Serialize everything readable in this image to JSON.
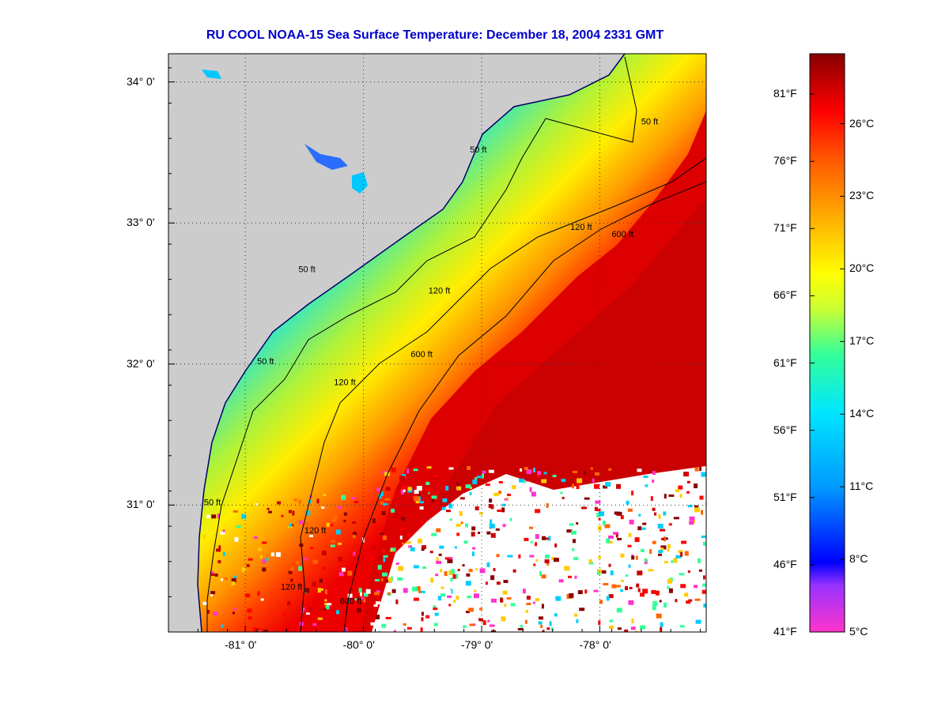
{
  "title": "RU COOL  NOAA-15  Sea Surface Temperature:  December 18, 2004 2331 GMT",
  "map": {
    "lat_ticks": [
      {
        "value": 34.0,
        "label": "34° 0'"
      },
      {
        "value": 33.0,
        "label": "33° 0'"
      },
      {
        "value": 32.0,
        "label": "32° 0'"
      },
      {
        "value": 31.0,
        "label": "31° 0'"
      }
    ],
    "lon_ticks": [
      {
        "value": -81.0,
        "label": "-81° 0'"
      },
      {
        "value": -80.0,
        "label": "-80° 0'"
      },
      {
        "value": -79.0,
        "label": "-79° 0'"
      },
      {
        "value": -78.0,
        "label": "-78° 0'"
      }
    ],
    "lat_range": [
      30.1,
      34.2
    ],
    "lon_range": [
      -81.65,
      -77.1
    ],
    "grid": "dotted",
    "land_color": "#cccccc",
    "cloud_color": "#ffffff",
    "contours": [
      {
        "label": "50 ft",
        "positions": [
          [
            -77.65,
            33.7
          ],
          [
            -79.1,
            33.5
          ],
          [
            -80.55,
            32.65
          ],
          [
            -80.9,
            32.0
          ],
          [
            -81.35,
            31.0
          ]
        ]
      },
      {
        "label": "120 ft",
        "positions": [
          [
            -78.25,
            32.95
          ],
          [
            -79.45,
            32.5
          ],
          [
            -80.25,
            31.85
          ],
          [
            -80.5,
            30.8
          ],
          [
            -80.7,
            30.4
          ]
        ]
      },
      {
        "label": "600 ft",
        "positions": [
          [
            -77.9,
            32.9
          ],
          [
            -79.6,
            32.05
          ],
          [
            -80.2,
            30.3
          ]
        ]
      }
    ]
  },
  "colorbar": {
    "f_labels": [
      "81°F",
      "76°F",
      "71°F",
      "66°F",
      "61°F",
      "56°F",
      "51°F",
      "46°F",
      "41°F"
    ],
    "c_labels": [
      "26°C",
      "23°C",
      "20°C",
      "17°C",
      "14°C",
      "11°C",
      "8°C",
      "5°C"
    ],
    "stops": [
      "#ff33cc",
      "#9933ff",
      "#0000ff",
      "#0099ff",
      "#00e6ff",
      "#33ff99",
      "#ccff33",
      "#ffff00",
      "#ffaa00",
      "#ff5500",
      "#ff0000",
      "#880000"
    ]
  }
}
